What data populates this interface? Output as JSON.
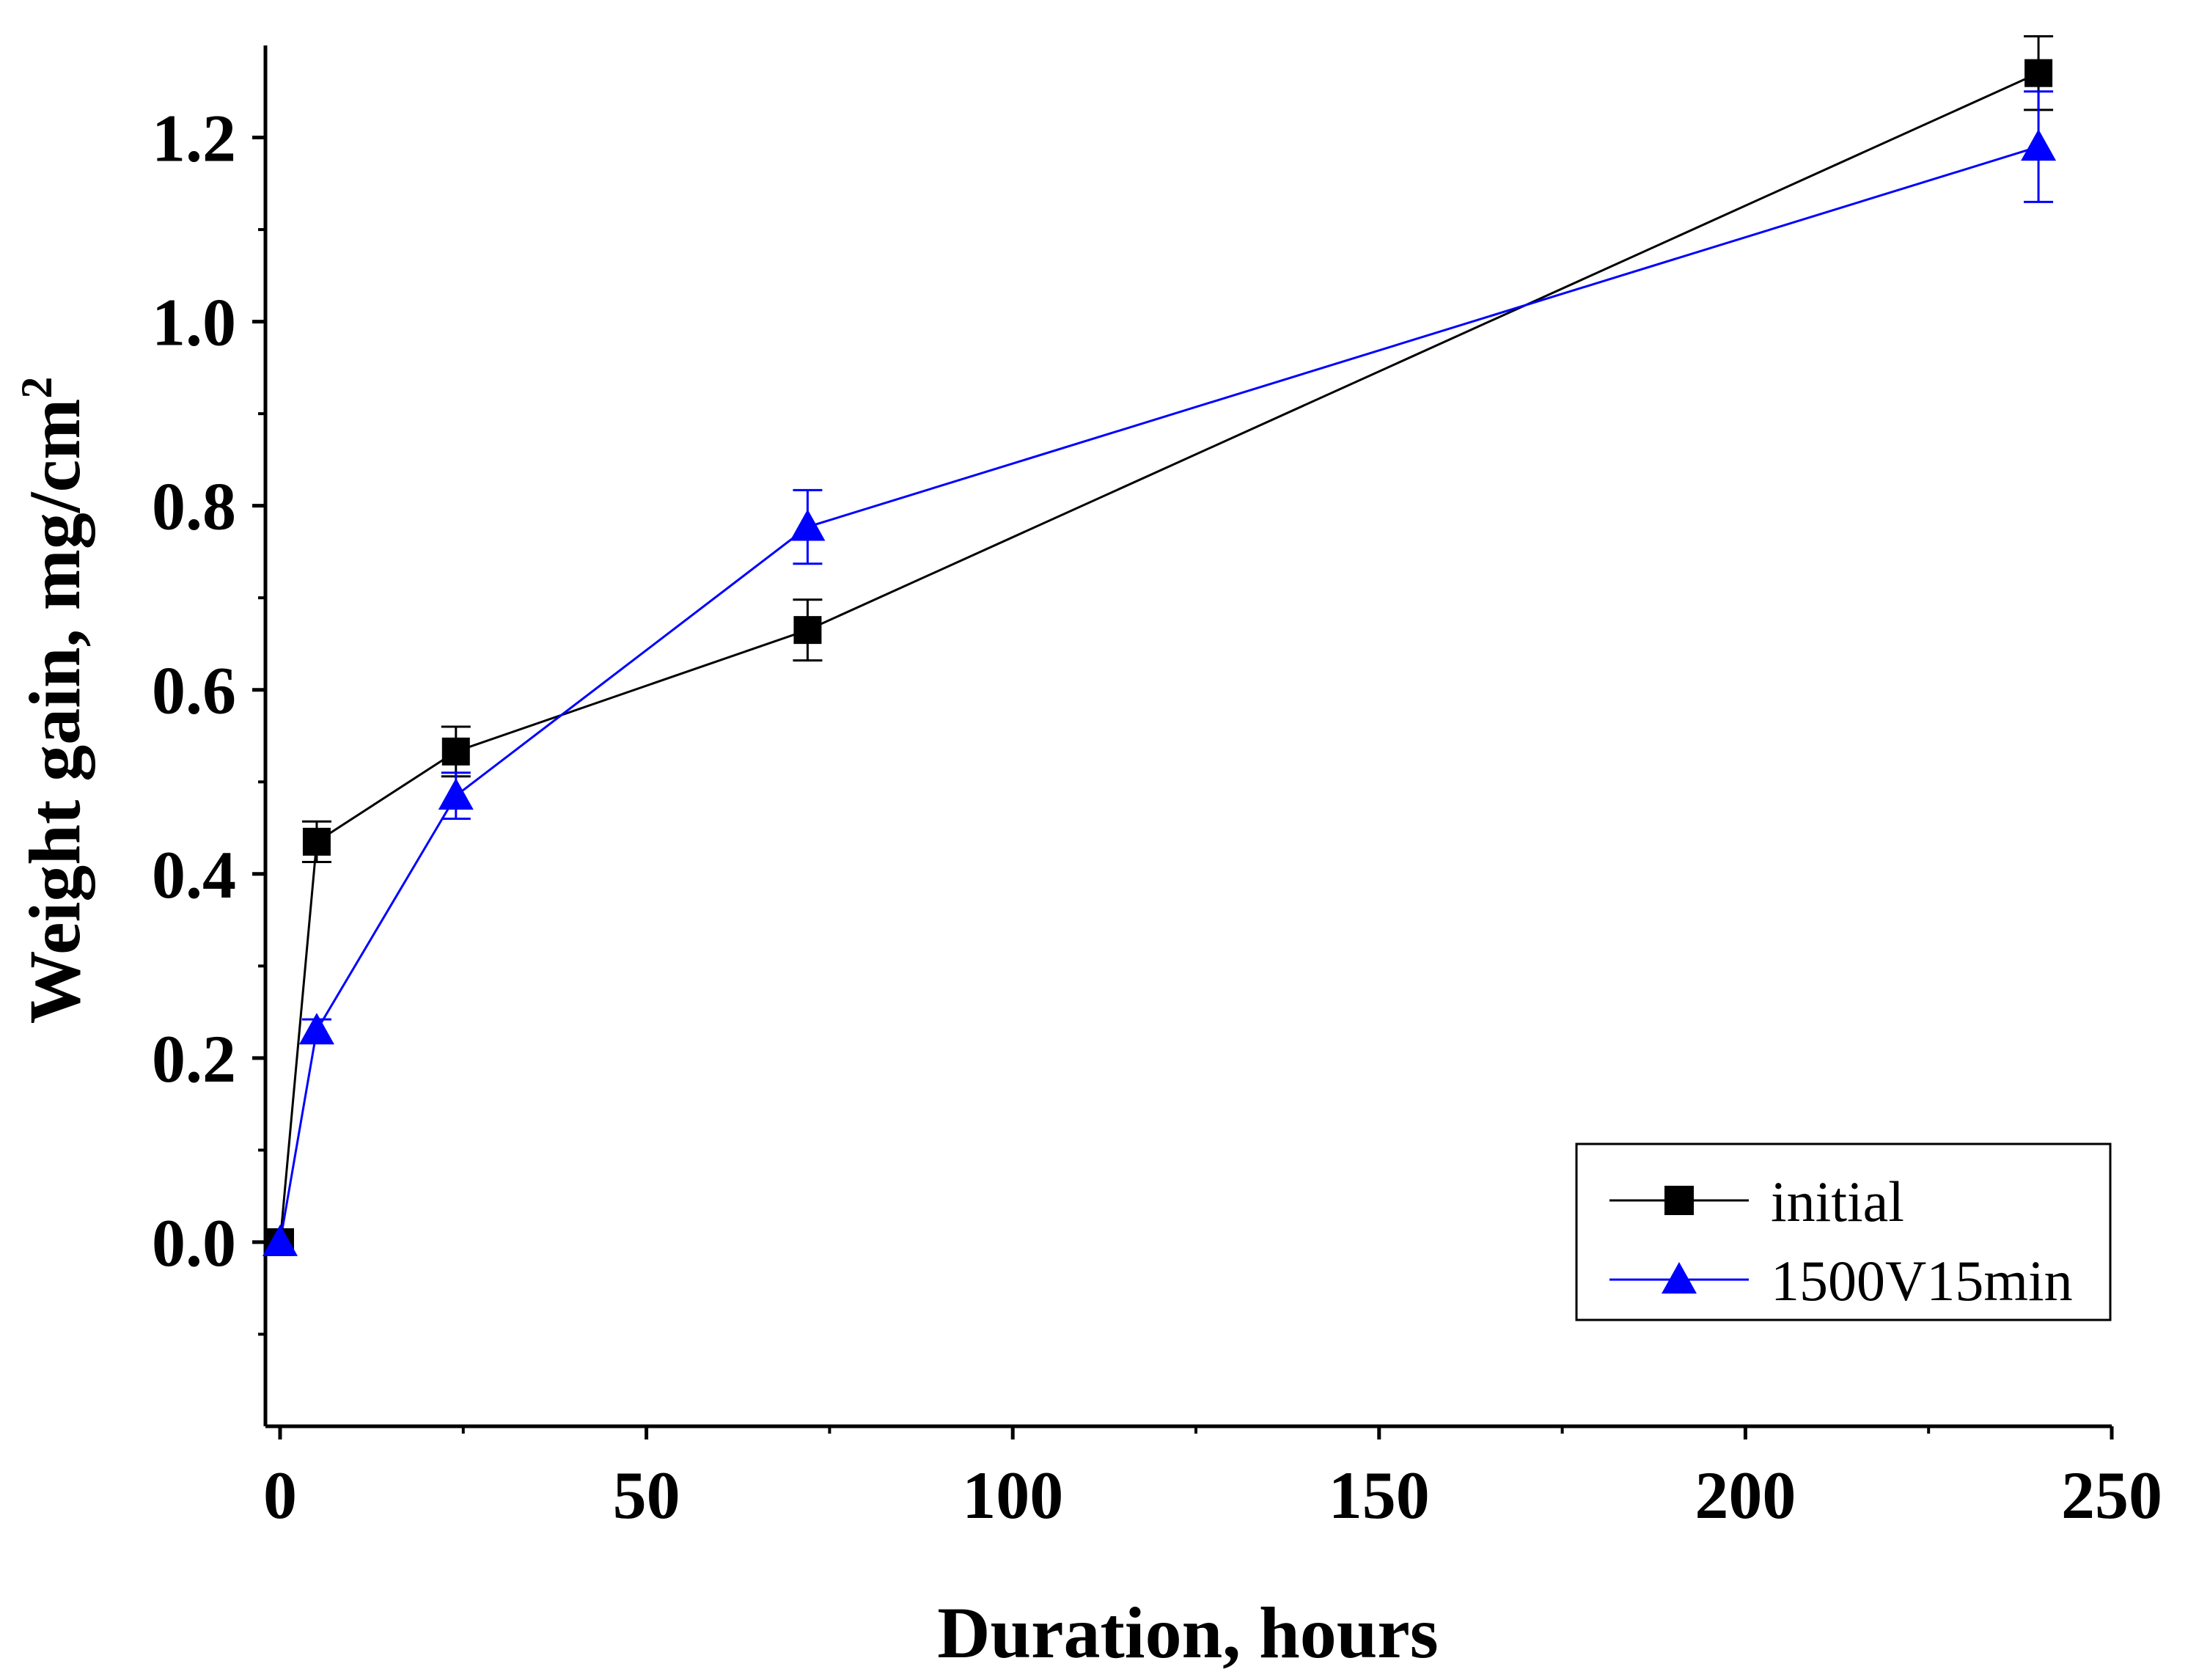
{
  "chart_data": {
    "type": "line",
    "title": "",
    "xlabel": "Duration, hours",
    "ylabel": "Weight gain, mg/cm",
    "ylabel_superscript": "2",
    "xlim": [
      -2,
      250
    ],
    "ylim": [
      -0.2,
      1.3
    ],
    "xticks": [
      0,
      50,
      100,
      150,
      200,
      250
    ],
    "xticks_minor": [
      25,
      75,
      125,
      175,
      225
    ],
    "yticks": [
      0.0,
      0.2,
      0.4,
      0.6,
      0.8,
      1.0,
      1.2
    ],
    "yticks_minor": [
      -0.1,
      0.1,
      0.3,
      0.5,
      0.7,
      0.9,
      1.1
    ],
    "xtick_labels": [
      "0",
      "50",
      "100",
      "150",
      "200",
      "250"
    ],
    "ytick_labels": [
      "0.0",
      "0.2",
      "0.4",
      "0.6",
      "0.8",
      "1.0",
      "1.2"
    ],
    "grid": false,
    "legend_position": "bottom-right",
    "series": [
      {
        "name": "initial",
        "color": "#000000",
        "marker": "square",
        "x": [
          0,
          5,
          24,
          72,
          240
        ],
        "y": [
          0.0,
          0.435,
          0.533,
          0.665,
          1.27
        ],
        "err": [
          0.0,
          0.022,
          0.027,
          0.033,
          0.04
        ]
      },
      {
        "name": "1500V15min",
        "color": "#0000ff",
        "marker": "triangle",
        "x": [
          0,
          5,
          24,
          72,
          240
        ],
        "y": [
          0.0,
          0.23,
          0.485,
          0.777,
          1.19
        ],
        "err": [
          0.0,
          0.012,
          0.025,
          0.04,
          0.06
        ]
      }
    ]
  }
}
